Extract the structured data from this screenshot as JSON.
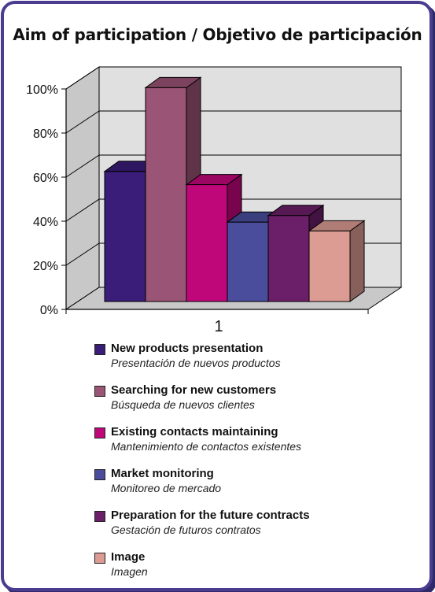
{
  "chart_data": {
    "type": "bar",
    "title": "Aim of participation / Objetivo de participación",
    "categories": [
      "1"
    ],
    "ylim": [
      0,
      100
    ],
    "y_ticks": [
      "0%",
      "20%",
      "40%",
      "60%",
      "80%",
      "100%"
    ],
    "grid": true,
    "three_d": true,
    "legend_position": "bottom",
    "series": [
      {
        "name": "New products presentation",
        "name_es": "Presentación de nuevos productos",
        "values": [
          59
        ],
        "color": "#3a1d78"
      },
      {
        "name": "Searching for new customers",
        "name_es": "Búsqueda de nuevos clientes",
        "values": [
          97
        ],
        "color": "#9a5475"
      },
      {
        "name": "Existing contacts maintaining",
        "name_es": "Mantenimiento de contactos existentes",
        "values": [
          53
        ],
        "color": "#c0077a"
      },
      {
        "name": "Market monitoring",
        "name_es": "Monitoreo de mercado",
        "values": [
          36
        ],
        "color": "#4a4d9c"
      },
      {
        "name": "Preparation for the future contracts",
        "name_es": "Gestación de futuros contratos",
        "values": [
          39
        ],
        "color": "#6b1f68"
      },
      {
        "name": "Image",
        "name_es": "Imagen",
        "values": [
          32
        ],
        "color": "#dc9b93"
      }
    ]
  }
}
